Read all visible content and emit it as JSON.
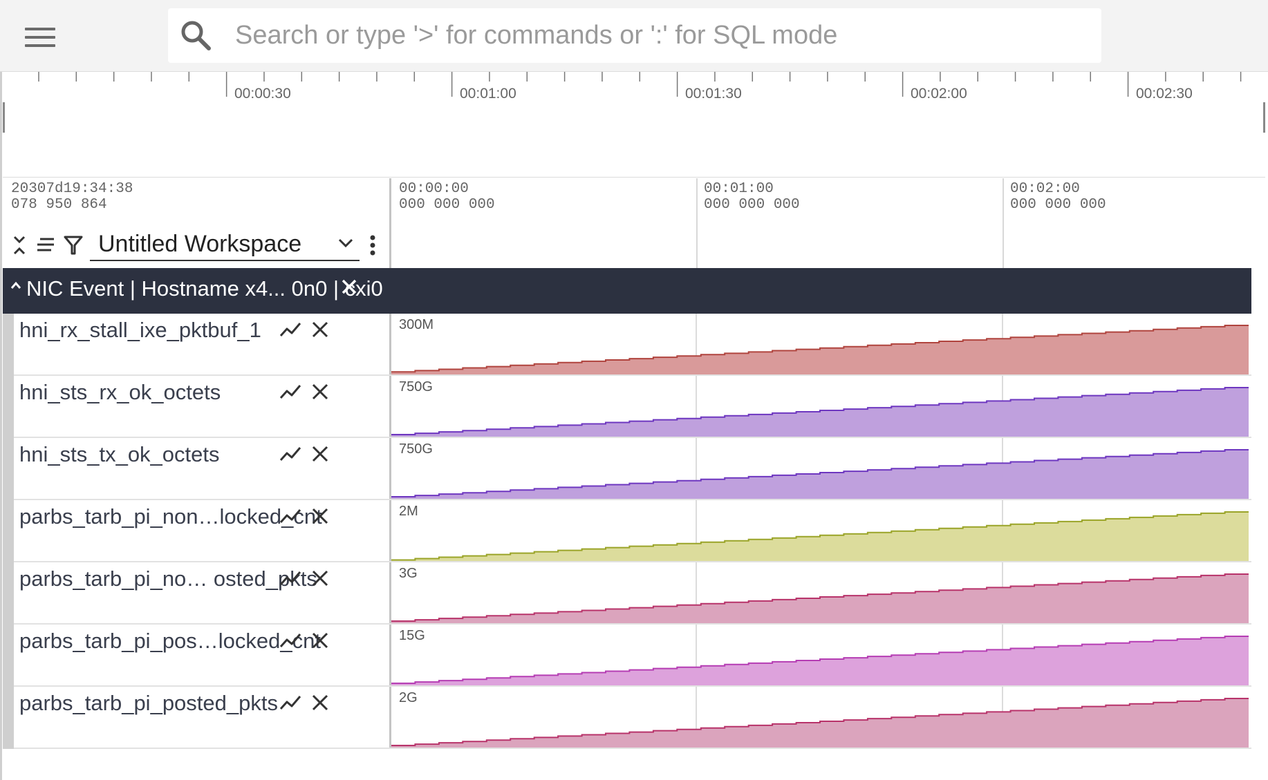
{
  "search": {
    "placeholder": "Search or type '>' for commands or ':' for SQL mode",
    "value": ""
  },
  "overview": {
    "labels": [
      "00:00:30",
      "00:01:00",
      "00:01:30",
      "00:02:00",
      "00:02:30"
    ]
  },
  "time_header": {
    "origin_line1": "20307d19:34:38",
    "origin_line2": "078 950 864",
    "ticks": [
      {
        "l1": "00:00:00",
        "l2": "000 000 000"
      },
      {
        "l1": "00:01:00",
        "l2": "000 000 000"
      },
      {
        "l1": "00:02:00",
        "l2": "000 000 000"
      }
    ]
  },
  "workspace": {
    "name": "Untitled Workspace"
  },
  "group": {
    "title": "NIC Event | Hostname x4... 0n0 | cxi0"
  },
  "tracks": [
    {
      "name": "hni_rx_stall_ixe_pktbuf_1",
      "ymax": "300M",
      "fill": "#d99a9a",
      "stroke": "#b0443e",
      "start": 0.05,
      "end": 0.96
    },
    {
      "name": "hni_sts_rx_ok_octets",
      "ymax": "750G",
      "fill": "#bfa0dd",
      "stroke": "#6e37c0",
      "start": 0.04,
      "end": 0.96
    },
    {
      "name": "hni_sts_tx_ok_octets",
      "ymax": "750G",
      "fill": "#bfa0dd",
      "stroke": "#6e37c0",
      "start": 0.04,
      "end": 0.96
    },
    {
      "name": "parbs_tarb_pi_non…locked_cnt",
      "ymax": "2M",
      "fill": "#dcdc9c",
      "stroke": "#9aa428",
      "start": 0.02,
      "end": 0.96
    },
    {
      "name": "parbs_tarb_pi_no…  osted_pkts",
      "ymax": "3G",
      "fill": "#dba4bd",
      "stroke": "#b8336a",
      "start": 0.04,
      "end": 0.96
    },
    {
      "name": "parbs_tarb_pi_pos…locked_cnt",
      "ymax": "15G",
      "fill": "#dda2dc",
      "stroke": "#b53db3",
      "start": 0.04,
      "end": 0.96
    },
    {
      "name": "parbs_tarb_pi_posted_pkts",
      "ymax": "2G",
      "fill": "#dba4bd",
      "stroke": "#b8336a",
      "start": 0.04,
      "end": 0.96
    }
  ],
  "icons": {
    "menu": "menu-icon",
    "search": "search-icon",
    "collapse": "collapse-all-icon",
    "list": "list-icon",
    "filter": "filter-icon",
    "dropdown": "chevron-down-icon",
    "more": "more-vert-icon",
    "graph": "line-chart-icon",
    "close": "close-icon"
  }
}
